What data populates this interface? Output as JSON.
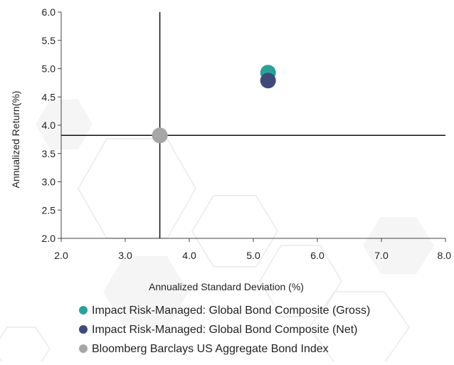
{
  "chart_data": {
    "type": "scatter",
    "title": "",
    "xlabel": "Annualized Standard Deviation (%)",
    "ylabel": "Annualized Return(%)",
    "xlim": [
      2.0,
      8.0
    ],
    "ylim": [
      2.0,
      6.0
    ],
    "x_ticks": [
      "2.0",
      "3.0",
      "4.0",
      "5.0",
      "6.0",
      "7.0",
      "8.0"
    ],
    "y_ticks": [
      "2.0",
      "2.5",
      "3.0",
      "3.5",
      "4.0",
      "4.5",
      "5.0",
      "5.5",
      "6.0"
    ],
    "crosshair": {
      "x": 3.54,
      "y": 3.82
    },
    "legend_position": "bottom",
    "grid": false,
    "series": [
      {
        "name": "Impact Risk-Managed: Global Bond Composite (Gross)",
        "color": "#2aa198",
        "x": [
          5.23
        ],
        "y": [
          4.93
        ]
      },
      {
        "name": "Impact Risk-Managed: Global Bond Composite (Net)",
        "color": "#3d4a7a",
        "x": [
          5.23
        ],
        "y": [
          4.79
        ]
      },
      {
        "name": "Bloomberg Barclays US Aggregate Bond Index",
        "color": "#a6a6a6",
        "x": [
          3.54
        ],
        "y": [
          3.82
        ]
      }
    ]
  }
}
